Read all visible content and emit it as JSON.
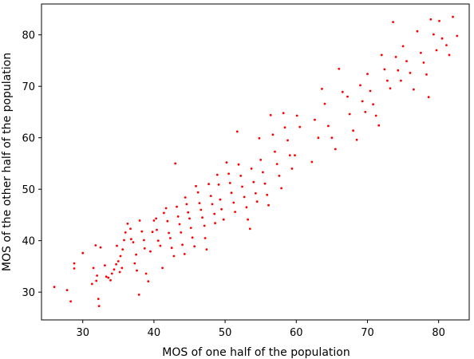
{
  "chart_data": {
    "type": "scatter",
    "title": "",
    "xlabel": "MOS of one half of the population",
    "ylabel": "MOS of the other half of the population",
    "xlim": [
      24.2,
      84.3
    ],
    "ylim": [
      24.6,
      86.0
    ],
    "xticks": [
      30,
      40,
      50,
      60,
      70,
      80
    ],
    "yticks": [
      30,
      40,
      50,
      60,
      70,
      80
    ],
    "xtick_labels": [
      "30",
      "40",
      "50",
      "60",
      "70",
      "80"
    ],
    "ytick_labels": [
      "30",
      "40",
      "50",
      "60",
      "70",
      "80"
    ],
    "grid": false,
    "legend": "none",
    "marker_color": "#ff0000",
    "series": [
      {
        "points": [
          [
            26.0,
            31.0
          ],
          [
            27.8,
            30.4
          ],
          [
            28.3,
            28.2
          ],
          [
            28.8,
            35.6
          ],
          [
            28.8,
            34.6
          ],
          [
            30.0,
            37.6
          ],
          [
            31.3,
            31.6
          ],
          [
            31.5,
            34.7
          ],
          [
            31.8,
            39.1
          ],
          [
            31.9,
            32.2
          ],
          [
            32.0,
            33.2
          ],
          [
            32.2,
            28.7
          ],
          [
            32.3,
            27.3
          ],
          [
            32.5,
            38.7
          ],
          [
            33.1,
            35.2
          ],
          [
            33.3,
            33.0
          ],
          [
            33.6,
            32.8
          ],
          [
            33.9,
            32.3
          ],
          [
            34.1,
            33.6
          ],
          [
            34.4,
            34.4
          ],
          [
            34.7,
            35.4
          ],
          [
            35.0,
            36.0
          ],
          [
            35.2,
            33.9
          ],
          [
            35.5,
            34.7
          ],
          [
            35.6,
            38.3
          ],
          [
            35.3,
            37.0
          ],
          [
            34.8,
            39.0
          ],
          [
            35.8,
            40.1
          ],
          [
            36.0,
            41.6
          ],
          [
            36.3,
            43.3
          ],
          [
            36.7,
            42.3
          ],
          [
            36.8,
            40.3
          ],
          [
            37.1,
            39.7
          ],
          [
            37.3,
            35.6
          ],
          [
            37.6,
            34.2
          ],
          [
            37.9,
            29.5
          ],
          [
            37.5,
            37.3
          ],
          [
            38.0,
            43.9
          ],
          [
            38.3,
            41.8
          ],
          [
            38.6,
            40.1
          ],
          [
            38.7,
            38.5
          ],
          [
            38.9,
            33.6
          ],
          [
            39.2,
            32.1
          ],
          [
            39.5,
            37.9
          ],
          [
            39.8,
            41.7
          ],
          [
            40.0,
            43.9
          ],
          [
            40.3,
            44.3
          ],
          [
            40.4,
            42.1
          ],
          [
            40.6,
            40.0
          ],
          [
            40.9,
            39.0
          ],
          [
            41.2,
            34.7
          ],
          [
            41.4,
            45.4
          ],
          [
            41.7,
            46.3
          ],
          [
            41.9,
            43.8
          ],
          [
            42.1,
            41.5
          ],
          [
            42.3,
            40.5
          ],
          [
            42.5,
            38.6
          ],
          [
            42.8,
            37.0
          ],
          [
            43.0,
            55.0
          ],
          [
            43.2,
            46.6
          ],
          [
            43.4,
            44.7
          ],
          [
            43.6,
            43.2
          ],
          [
            43.8,
            41.6
          ],
          [
            44.0,
            39.2
          ],
          [
            44.3,
            37.4
          ],
          [
            44.4,
            48.4
          ],
          [
            44.6,
            47.1
          ],
          [
            44.8,
            45.5
          ],
          [
            45.0,
            44.3
          ],
          [
            45.2,
            42.5
          ],
          [
            45.4,
            40.6
          ],
          [
            45.7,
            38.9
          ],
          [
            45.9,
            50.6
          ],
          [
            46.2,
            49.4
          ],
          [
            46.4,
            47.3
          ],
          [
            46.6,
            46.0
          ],
          [
            46.8,
            44.5
          ],
          [
            47.1,
            42.9
          ],
          [
            47.2,
            40.5
          ],
          [
            47.4,
            38.3
          ],
          [
            47.7,
            51.0
          ],
          [
            48.0,
            48.7
          ],
          [
            48.2,
            47.1
          ],
          [
            48.5,
            45.2
          ],
          [
            48.6,
            43.4
          ],
          [
            48.9,
            52.8
          ],
          [
            49.1,
            50.9
          ],
          [
            49.3,
            48.0
          ],
          [
            49.5,
            46.1
          ],
          [
            49.8,
            44.1
          ],
          [
            50.2,
            55.2
          ],
          [
            50.5,
            53.0
          ],
          [
            50.7,
            51.2
          ],
          [
            50.9,
            49.3
          ],
          [
            51.2,
            47.4
          ],
          [
            51.4,
            45.6
          ],
          [
            51.7,
            61.2
          ],
          [
            51.9,
            54.8
          ],
          [
            52.2,
            52.6
          ],
          [
            52.4,
            50.5
          ],
          [
            52.7,
            48.5
          ],
          [
            53.0,
            46.5
          ],
          [
            53.2,
            44.1
          ],
          [
            53.5,
            42.3
          ],
          [
            53.7,
            54.0
          ],
          [
            54.0,
            51.4
          ],
          [
            54.3,
            49.2
          ],
          [
            54.5,
            47.6
          ],
          [
            54.8,
            59.9
          ],
          [
            55.0,
            55.7
          ],
          [
            55.3,
            53.3
          ],
          [
            55.6,
            51.1
          ],
          [
            55.9,
            48.9
          ],
          [
            56.1,
            46.9
          ],
          [
            56.4,
            64.4
          ],
          [
            56.7,
            60.6
          ],
          [
            57.0,
            57.3
          ],
          [
            57.3,
            54.9
          ],
          [
            57.6,
            52.6
          ],
          [
            57.9,
            50.2
          ],
          [
            58.2,
            64.8
          ],
          [
            58.4,
            62.0
          ],
          [
            58.8,
            59.5
          ],
          [
            59.1,
            56.6
          ],
          [
            59.4,
            54.0
          ],
          [
            59.8,
            56.6
          ],
          [
            60.1,
            64.3
          ],
          [
            60.5,
            62.1
          ],
          [
            62.2,
            55.3
          ],
          [
            62.6,
            63.5
          ],
          [
            63.1,
            60.0
          ],
          [
            63.6,
            69.5
          ],
          [
            64.0,
            66.6
          ],
          [
            64.5,
            62.3
          ],
          [
            65.0,
            60.0
          ],
          [
            65.5,
            57.8
          ],
          [
            66.0,
            73.4
          ],
          [
            66.5,
            68.9
          ],
          [
            67.2,
            68.0
          ],
          [
            67.5,
            64.6
          ],
          [
            68.0,
            61.4
          ],
          [
            68.5,
            59.6
          ],
          [
            69.0,
            70.2
          ],
          [
            69.3,
            67.1
          ],
          [
            69.7,
            65.0
          ],
          [
            70.0,
            72.4
          ],
          [
            70.4,
            69.1
          ],
          [
            70.8,
            66.5
          ],
          [
            71.2,
            64.3
          ],
          [
            71.6,
            62.4
          ],
          [
            72.0,
            76.1
          ],
          [
            72.4,
            73.3
          ],
          [
            72.8,
            71.1
          ],
          [
            73.2,
            69.6
          ],
          [
            73.6,
            82.5
          ],
          [
            74.0,
            75.7
          ],
          [
            74.3,
            73.1
          ],
          [
            74.7,
            71.1
          ],
          [
            75.0,
            77.8
          ],
          [
            75.5,
            74.9
          ],
          [
            76.0,
            72.6
          ],
          [
            76.5,
            69.4
          ],
          [
            77.0,
            80.7
          ],
          [
            77.5,
            76.5
          ],
          [
            77.9,
            74.6
          ],
          [
            78.3,
            72.3
          ],
          [
            78.6,
            67.9
          ],
          [
            78.9,
            83.0
          ],
          [
            79.3,
            80.1
          ],
          [
            79.7,
            77.0
          ],
          [
            80.1,
            82.7
          ],
          [
            80.5,
            79.3
          ],
          [
            81.1,
            78.0
          ],
          [
            81.5,
            76.1
          ],
          [
            82.0,
            83.5
          ],
          [
            82.6,
            79.8
          ]
        ]
      }
    ]
  }
}
